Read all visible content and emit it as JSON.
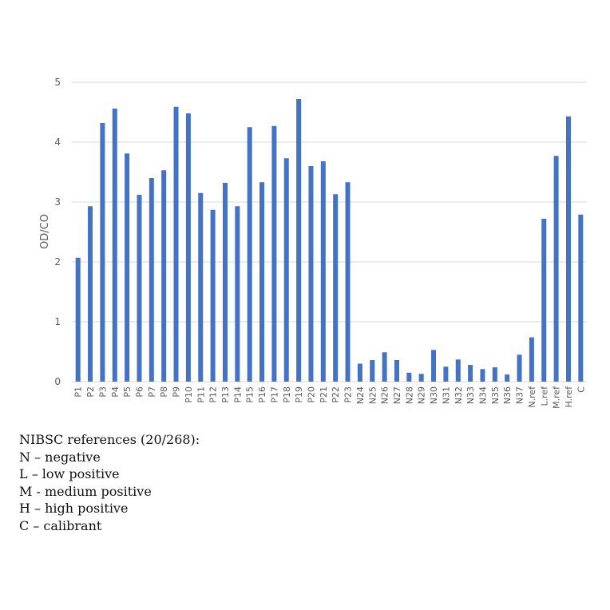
{
  "chart_data": {
    "type": "bar",
    "title": "",
    "xlabel": "",
    "ylabel": "OD/CO",
    "ylim": [
      0,
      5
    ],
    "yticks": [
      0,
      1,
      2,
      3,
      4,
      5
    ],
    "grid": true,
    "legend": null,
    "bar_color": "#4472c4",
    "categories": [
      "P1",
      "P2",
      "P3",
      "P4",
      "P5",
      "P6",
      "P7",
      "P8",
      "P9",
      "P10",
      "P11",
      "P12",
      "P13",
      "P14",
      "P15",
      "P16",
      "P17",
      "P18",
      "P19",
      "P20",
      "P21",
      "P22",
      "P23",
      "N24",
      "N25",
      "N26",
      "N27",
      "N28",
      "N29",
      "N30",
      "N31",
      "N32",
      "N33",
      "N34",
      "N35",
      "N36",
      "N37",
      "N.ref",
      "L.ref",
      "M.ref",
      "H.ref",
      "C"
    ],
    "values": [
      2.07,
      2.93,
      4.32,
      4.56,
      3.81,
      3.12,
      3.4,
      3.53,
      4.59,
      4.48,
      3.15,
      2.87,
      3.32,
      2.93,
      4.25,
      3.33,
      4.27,
      3.73,
      4.72,
      3.6,
      3.68,
      3.13,
      3.33,
      0.3,
      0.36,
      0.49,
      0.36,
      0.15,
      0.13,
      0.53,
      0.25,
      0.37,
      0.28,
      0.21,
      0.24,
      0.12,
      0.45,
      0.74,
      2.72,
      3.77,
      4.43,
      2.79
    ]
  },
  "notes": {
    "heading": "NIBSC references (20/268):",
    "items": [
      "N – negative",
      "L – low positive",
      "M - medium positive",
      "H – high positive",
      "C – calibrant"
    ]
  }
}
